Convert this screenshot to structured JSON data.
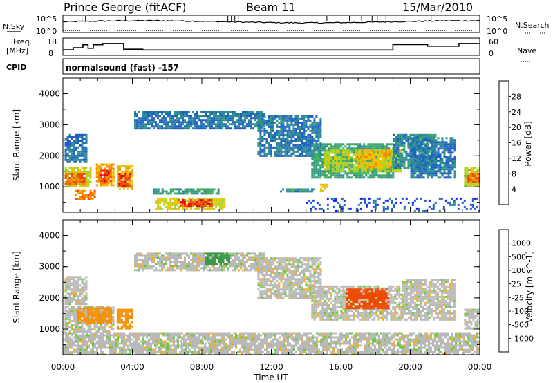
{
  "header": {
    "station": "Prince George (fitACF)",
    "beam": "Beam 11",
    "date": "15/Mar/2010"
  },
  "strips": {
    "nsky_label": "N.Sky",
    "nsearch_label": "N.Search",
    "noise_ticks": [
      "10^5",
      "10^0"
    ],
    "freq_label_1": "Freq.",
    "freq_label_2": "[MHz]",
    "freq_ticks": [
      "18",
      "8"
    ],
    "nave_label": "Nave",
    "nave_ticks": [
      "60",
      "0"
    ],
    "cpid_label": "CPID",
    "cpid_value": "normalsound (fast) -157"
  },
  "colors": {
    "power": [
      "#1a1aff",
      "#1f5fc7",
      "#2e8f8f",
      "#3fae5a",
      "#a8d42a",
      "#f2c100",
      "#f58a00",
      "#ee4a10",
      "#e60000"
    ],
    "velocity": [
      "#e00000",
      "#f04a00",
      "#f59000",
      "#f0b020",
      "#b9b9b9",
      "#66cc33",
      "#3a9a4a",
      "#2e6fb0",
      "#1a1acc"
    ],
    "ground_scatter": "#b8b8b8"
  },
  "chart_data": [
    {
      "panel": "noise",
      "type": "line",
      "series": [
        {
          "name": "N.Sky",
          "x": [
            0,
            1,
            2,
            3,
            4,
            5,
            6,
            7,
            8,
            9,
            10,
            11,
            12,
            13,
            14,
            15,
            16,
            17,
            18,
            19,
            20,
            21,
            22,
            23,
            24
          ],
          "values": [
            40,
            38,
            42,
            41,
            39,
            38,
            40,
            41,
            42,
            45,
            43,
            40,
            38,
            37,
            36,
            38,
            40,
            41,
            42,
            44,
            40,
            38,
            39,
            40,
            41
          ]
        },
        {
          "name": "N.Search",
          "x": [
            0,
            24
          ],
          "values": [
            2,
            2
          ]
        }
      ],
      "ytick_labels": [
        "10^0",
        "10^5"
      ]
    },
    {
      "panel": "frequency",
      "type": "line",
      "x_hours": [
        0,
        0.6,
        0.6,
        1.15,
        1.15,
        1.45,
        1.45,
        1.75,
        1.75,
        2.3,
        2.3,
        3.5,
        3.5,
        4.6,
        4.6,
        19.0,
        19.0,
        21.0,
        21.0,
        22.8,
        22.8,
        24.0
      ],
      "freq_mhz": [
        11.0,
        11.0,
        12.3,
        12.3,
        14.2,
        14.2,
        12.0,
        12.0,
        14.2,
        14.2,
        15.0,
        15.0,
        11.4,
        11.4,
        10.9,
        10.9,
        14.3,
        14.3,
        13.3,
        13.3,
        15.0,
        15.0
      ],
      "nave_reference": 30,
      "ylim_freq": [
        8,
        18
      ],
      "ylim_nave": [
        0,
        60
      ]
    },
    {
      "panel": "power",
      "type": "heatmap",
      "title": "Power [dB]",
      "xlabel": "",
      "ylabel": "Slant Range [km]",
      "xlim_hours": [
        0,
        24
      ],
      "ylim_km": [
        180,
        4500
      ],
      "x_ticks": [
        "00:00",
        "04:00",
        "08:00",
        "12:00",
        "16:00",
        "20:00",
        "00:00"
      ],
      "y_ticks": [
        1000,
        2000,
        3000,
        4000
      ],
      "colorbar_levels": [
        4,
        8,
        12,
        16,
        20,
        24,
        28
      ],
      "regions": [
        {
          "t0": 0.1,
          "t1": 1.6,
          "r0": 1000,
          "r1": 1650,
          "power": 18
        },
        {
          "t0": 0.1,
          "t1": 1.2,
          "r0": 1100,
          "r1": 1450,
          "power": 26
        },
        {
          "t0": 0.7,
          "t1": 1.8,
          "r0": 600,
          "r1": 900,
          "power": 24
        },
        {
          "t0": 1.9,
          "t1": 2.9,
          "r0": 1050,
          "r1": 1750,
          "power": 22
        },
        {
          "t0": 2.1,
          "t1": 2.7,
          "r0": 1200,
          "r1": 1550,
          "power": 28
        },
        {
          "t0": 3.1,
          "t1": 4.0,
          "r0": 900,
          "r1": 1700,
          "power": 20
        },
        {
          "t0": 3.2,
          "t1": 3.8,
          "r0": 1000,
          "r1": 1450,
          "power": 28
        },
        {
          "t0": 0.1,
          "t1": 1.4,
          "r0": 1800,
          "r1": 2700,
          "power": 6
        },
        {
          "t0": 4.1,
          "t1": 11.6,
          "r0": 2900,
          "r1": 3450,
          "power": 6
        },
        {
          "t0": 11.2,
          "t1": 14.8,
          "r0": 2000,
          "r1": 3300,
          "power": 6
        },
        {
          "t0": 5.3,
          "t1": 9.3,
          "r0": 300,
          "r1": 650,
          "power": 18
        },
        {
          "t0": 6.6,
          "t1": 8.6,
          "r0": 350,
          "r1": 600,
          "power": 28
        },
        {
          "t0": 5.2,
          "t1": 9.0,
          "r0": 750,
          "r1": 950,
          "power": 10
        },
        {
          "t0": 12.5,
          "t1": 14.5,
          "r0": 850,
          "r1": 950,
          "power": 8
        },
        {
          "t0": 14.3,
          "t1": 19.0,
          "r0": 1300,
          "r1": 2400,
          "power": 10
        },
        {
          "t0": 15.0,
          "t1": 19.5,
          "r0": 1500,
          "r1": 2200,
          "power": 16
        },
        {
          "t0": 17.0,
          "t1": 18.8,
          "r0": 1600,
          "r1": 2200,
          "power": 20
        },
        {
          "t0": 19.0,
          "t1": 21.5,
          "r0": 1600,
          "r1": 2700,
          "power": 8
        },
        {
          "t0": 20.0,
          "t1": 22.6,
          "r0": 1300,
          "r1": 2600,
          "power": 6
        },
        {
          "t0": 23.1,
          "t1": 24.0,
          "r0": 1000,
          "r1": 1650,
          "power": 16
        },
        {
          "t0": 23.3,
          "t1": 24.0,
          "r0": 1150,
          "r1": 1450,
          "power": 26
        },
        {
          "t0": 14.8,
          "t1": 15.2,
          "r0": 850,
          "r1": 1100,
          "power": 20
        },
        {
          "t0": 14.0,
          "t1": 24.0,
          "r0": 200,
          "r1": 650,
          "power": 4
        }
      ]
    },
    {
      "panel": "velocity",
      "type": "heatmap",
      "title": "Velocity [m s^-1]",
      "xlabel": "Time UT",
      "ylabel": "Slant Range [km]",
      "xlim_hours": [
        0,
        24
      ],
      "ylim_km": [
        180,
        4500
      ],
      "x_ticks": [
        "00:00",
        "04:00",
        "08:00",
        "12:00",
        "16:00",
        "20:00",
        "00:00"
      ],
      "y_ticks": [
        1000,
        2000,
        3000,
        4000
      ],
      "colorbar_levels": [
        "-1000",
        "-500",
        "-100",
        "-25",
        "25",
        "100",
        "500",
        "1000"
      ],
      "regions": [
        {
          "t0": 0.1,
          "t1": 2.9,
          "r0": 900,
          "r1": 1750,
          "velocity": 0
        },
        {
          "t0": 0.8,
          "t1": 2.8,
          "r0": 1200,
          "r1": 1700,
          "velocity": -150
        },
        {
          "t0": 3.1,
          "t1": 4.0,
          "r0": 1050,
          "r1": 1650,
          "velocity": -150
        },
        {
          "t0": 0.1,
          "t1": 1.4,
          "r0": 1800,
          "r1": 2700,
          "velocity": 0
        },
        {
          "t0": 4.1,
          "t1": 11.6,
          "r0": 2900,
          "r1": 3450,
          "velocity": 0
        },
        {
          "t0": 8.2,
          "t1": 9.6,
          "r0": 3100,
          "r1": 3450,
          "velocity": 200
        },
        {
          "t0": 11.2,
          "t1": 14.8,
          "r0": 2000,
          "r1": 3300,
          "velocity": 0
        },
        {
          "t0": 5.3,
          "t1": 9.3,
          "r0": 250,
          "r1": 700,
          "velocity": 0
        },
        {
          "t0": 14.3,
          "t1": 19.5,
          "r0": 1300,
          "r1": 2400,
          "velocity": 0
        },
        {
          "t0": 16.3,
          "t1": 18.7,
          "r0": 1700,
          "r1": 2300,
          "velocity": -400
        },
        {
          "t0": 19.5,
          "t1": 22.6,
          "r0": 1300,
          "r1": 2600,
          "velocity": 0
        },
        {
          "t0": 23.1,
          "t1": 24.0,
          "r0": 1000,
          "r1": 1650,
          "velocity": 0
        },
        {
          "t0": 0.0,
          "t1": 24.0,
          "r0": 200,
          "r1": 900,
          "velocity": 0
        }
      ]
    }
  ]
}
